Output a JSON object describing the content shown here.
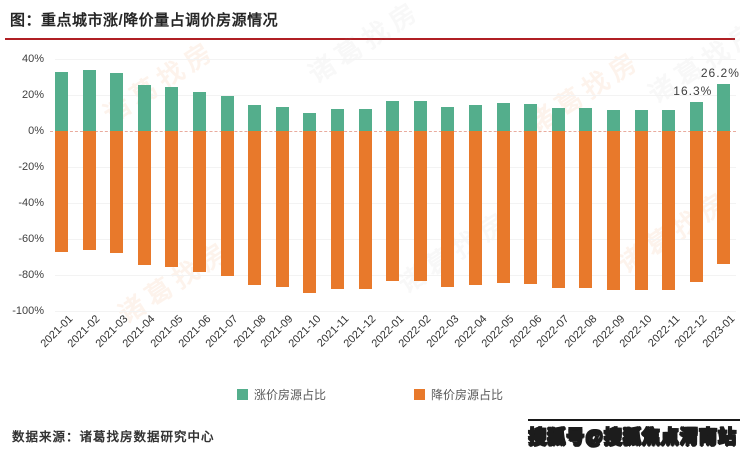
{
  "page": {
    "title": "图：重点城市涨/降价量占调价房源情况",
    "source": "数据来源：诸葛找房数据研究中心",
    "sohu_watermark": "搜狐号@搜狐焦点渭南站",
    "bg_watermark_text": "诸葛找房"
  },
  "colors": {
    "up": "#54ae8c",
    "down": "#e8792b",
    "title_rule": "#b01f24",
    "zero_line": "#e9ab9d",
    "axis_text": "#404040"
  },
  "legend": {
    "up_label": "涨价房源占比",
    "down_label": "降价房源占比"
  },
  "chart_data": {
    "type": "bar",
    "title": "图：重点城市涨/降价量占调价房源情况",
    "categories": [
      "2021-01",
      "2021-02",
      "2021-03",
      "2021-04",
      "2021-05",
      "2021-06",
      "2021-07",
      "2021-08",
      "2021-09",
      "2021-10",
      "2021-11",
      "2021-12",
      "2022-01",
      "2022-02",
      "2022-03",
      "2022-04",
      "2022-05",
      "2022-06",
      "2022-07",
      "2022-08",
      "2022-09",
      "2022-10",
      "2022-11",
      "2022-12",
      "2023-01"
    ],
    "series": [
      {
        "name": "涨价房源占比",
        "color": "#54ae8c",
        "values": [
          32.7,
          33.9,
          32.1,
          25.7,
          24.7,
          21.8,
          19.2,
          14.2,
          13.2,
          9.9,
          12.3,
          12.3,
          16.6,
          16.6,
          13.2,
          14.2,
          15.8,
          14.9,
          12.7,
          12.7,
          11.4,
          11.8,
          11.4,
          16.3,
          26.2
        ]
      },
      {
        "name": "降价房源占比",
        "color": "#e8792b",
        "values": [
          -67.3,
          -66.1,
          -67.9,
          -74.3,
          -75.3,
          -78.2,
          -80.8,
          -85.8,
          -86.8,
          -90.1,
          -87.7,
          -87.7,
          -83.4,
          -83.4,
          -86.8,
          -85.8,
          -84.2,
          -85.1,
          -87.3,
          -87.3,
          -88.6,
          -88.2,
          -88.6,
          -83.7,
          -73.8
        ]
      }
    ],
    "ylim": [
      -100,
      40
    ],
    "yticks": [
      40,
      20,
      0,
      -20,
      -40,
      -60,
      -80,
      -100
    ],
    "ytick_suffix": "%",
    "grid": "faint-horizontal",
    "zero_line": "dashed",
    "legend_position": "bottom-center",
    "annotations": [
      {
        "category": "2022-12",
        "series": "涨价房源占比",
        "text": "16.3%"
      },
      {
        "category": "2023-01",
        "series": "涨价房源占比",
        "text": "26.2%"
      }
    ]
  }
}
